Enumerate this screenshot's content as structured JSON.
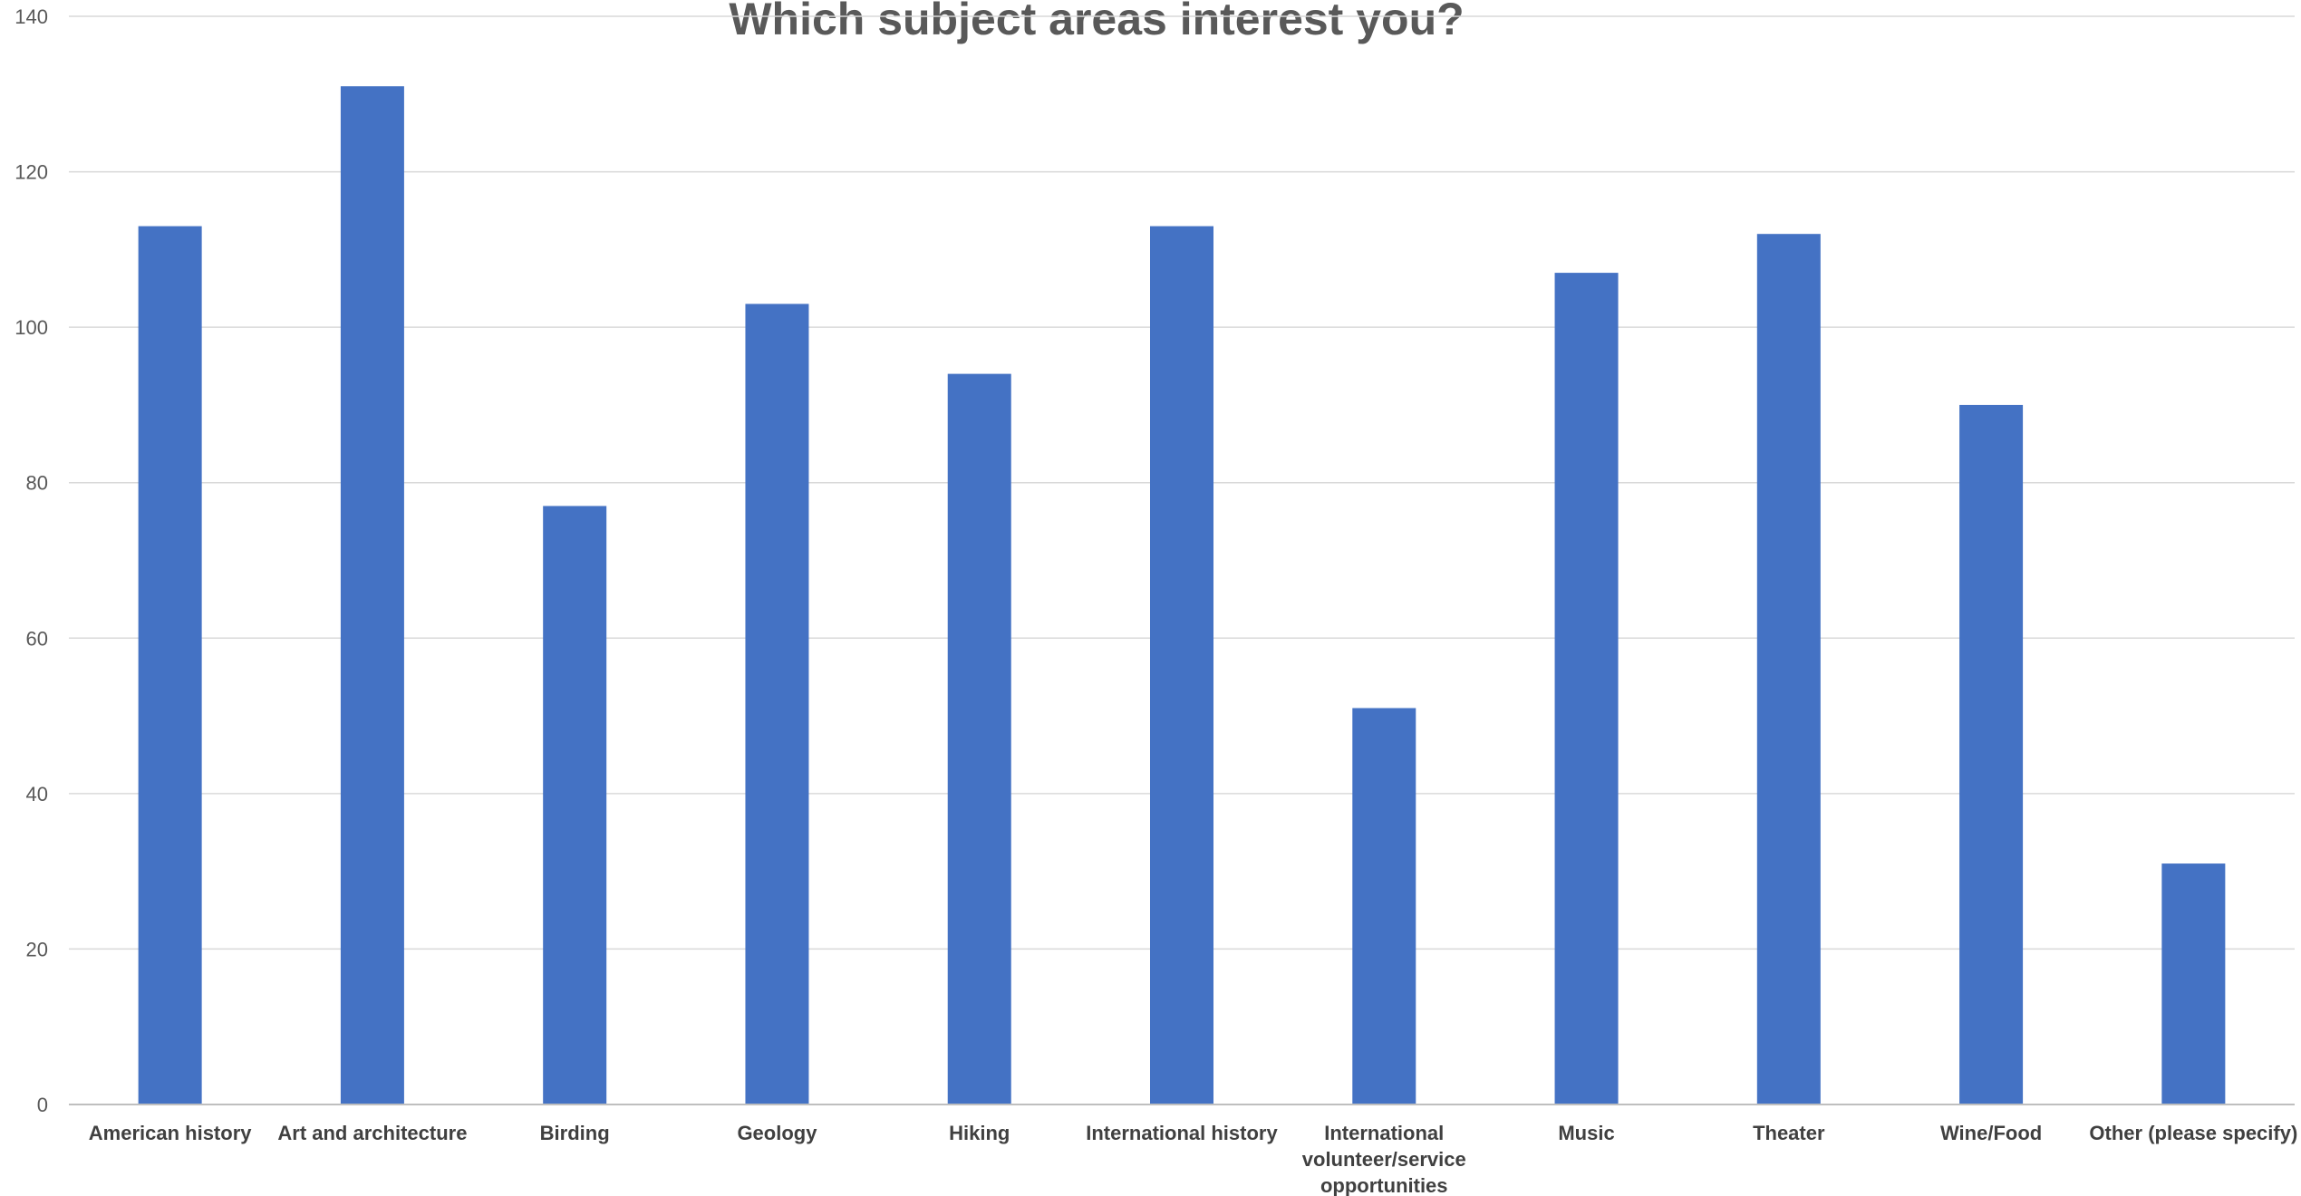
{
  "chart_data": {
    "type": "bar",
    "title": "Which subject areas interest you?",
    "xlabel": "",
    "ylabel": "",
    "ylim": [
      0,
      140
    ],
    "yticks": [
      0,
      20,
      40,
      60,
      80,
      100,
      120,
      140
    ],
    "grid": true,
    "legend": "none",
    "bar_color": "#4472C4",
    "categories": [
      "American history",
      "Art and architecture",
      "Birding",
      "Geology",
      "Hiking",
      "International history",
      "International volunteer/service opportunities",
      "Music",
      "Theater",
      "Wine/Food",
      "Other (please specify)"
    ],
    "category_lines": [
      [
        "American history"
      ],
      [
        "Art and architecture"
      ],
      [
        "Birding"
      ],
      [
        "Geology"
      ],
      [
        "Hiking"
      ],
      [
        "International history"
      ],
      [
        "International",
        "volunteer/service",
        "opportunities"
      ],
      [
        "Music"
      ],
      [
        "Theater"
      ],
      [
        "Wine/Food"
      ],
      [
        "Other (please specify)"
      ]
    ],
    "values": [
      113,
      131,
      77,
      103,
      94,
      113,
      51,
      107,
      112,
      90,
      31
    ]
  }
}
